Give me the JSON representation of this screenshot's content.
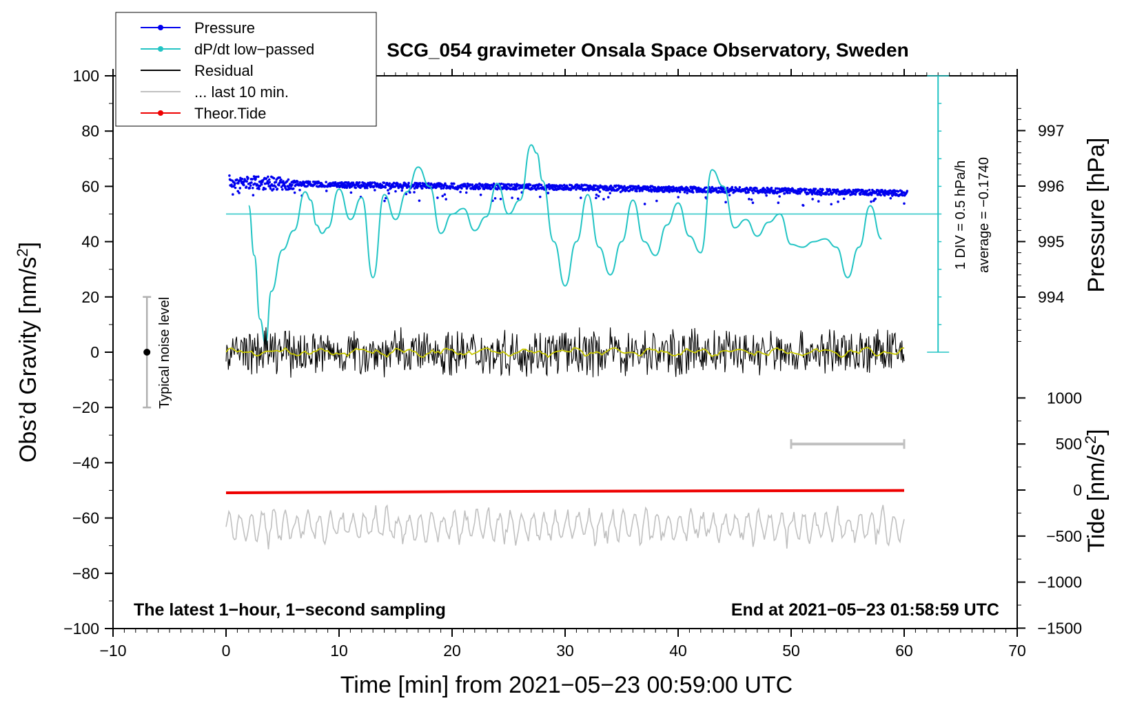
{
  "chart_data": {
    "type": "line",
    "title": "SCG_054 gravimeter Onsala Space Observatory, Sweden",
    "xlabel": "Time [min] from 2021−05−23 00:59:00 UTC",
    "ylabel_left": "Obs’d Gravity [nm/s",
    "ylabel_left_sup": "2",
    "ylabel_left_close": "]",
    "ylabel_right_pressure": "Pressure [hPa]",
    "ylabel_right_tide": "Tide [nm/s",
    "ylabel_right_tide_sup": "2",
    "ylabel_right_tide_close": "]",
    "xlim": [
      -10,
      70
    ],
    "ylim": [
      -100,
      100
    ],
    "x_ticks": [
      "−10",
      "0",
      "10",
      "20",
      "30",
      "40",
      "50",
      "60",
      "70"
    ],
    "y_ticks": [
      "100",
      "80",
      "60",
      "40",
      "20",
      "0",
      "−20",
      "−40",
      "−60",
      "−80",
      "−100"
    ],
    "pressure_ticks": [
      "997",
      "996",
      "995",
      "994"
    ],
    "pressure_tick_values": [
      997,
      996,
      995,
      994
    ],
    "tide_ticks": [
      "1000",
      "500",
      "0",
      "−500",
      "−1000",
      "−1500"
    ],
    "tide_tick_values": [
      1000,
      500,
      0,
      -500,
      -1000,
      -1500
    ],
    "legend": [
      {
        "label": "Pressure",
        "color": "#0000ee",
        "marker": true
      },
      {
        "label": "dP/dt low−passed",
        "color": "#22c4c4",
        "marker": true
      },
      {
        "label": "Residual",
        "color": "#000000",
        "marker": false
      },
      {
        "label": "... last 10 min.",
        "color": "#c0c0c0",
        "marker": false
      },
      {
        "label": "Theor.Tide",
        "color": "#ee0000",
        "marker": true
      }
    ],
    "annotations": {
      "bottom_left": "The latest 1−hour, 1−second sampling",
      "bottom_right": "End at 2021−05−23 01:58:59 UTC",
      "noise": "Typical noise level",
      "dpdt_scale": "1 DIV = 0.5 hPa/h",
      "dpdt_average": "average = −0.1740"
    },
    "noise_bar": {
      "x": -7,
      "center": 0,
      "half_range": 20
    },
    "pressure_series": {
      "x": [
        0,
        5,
        10,
        15,
        20,
        25,
        30,
        35,
        40,
        45,
        50,
        55,
        60
      ],
      "values": [
        996.07,
        996.05,
        996.02,
        996.01,
        996.0,
        995.99,
        995.98,
        995.96,
        995.94,
        995.93,
        995.91,
        995.89,
        995.87
      ]
    },
    "dpdt_series": {
      "reference_level": 50,
      "x": [
        2,
        2.5,
        3,
        3.5,
        4,
        5,
        6,
        7,
        7.5,
        8,
        8.5,
        9,
        10,
        11,
        12,
        13,
        14,
        15,
        16,
        17,
        18,
        19,
        20,
        21,
        22,
        23,
        24,
        25,
        26,
        27,
        27.5,
        28,
        29,
        30,
        31,
        32,
        33,
        34,
        35,
        36,
        37,
        38,
        39,
        40,
        41,
        42,
        43,
        44,
        45,
        46,
        47,
        48,
        49,
        50,
        51,
        52,
        53,
        54,
        55,
        56,
        57,
        58
      ],
      "values": [
        53,
        35,
        12,
        3,
        22,
        37,
        44,
        58,
        55,
        46,
        43,
        45,
        59,
        48,
        56,
        27,
        57,
        48,
        58,
        67,
        60,
        43,
        50,
        52,
        44,
        49,
        61,
        50,
        55,
        75,
        72,
        62,
        40,
        24,
        40,
        57,
        38,
        28,
        40,
        55,
        40,
        35,
        46,
        54,
        42,
        36,
        66,
        60,
        45,
        48,
        42,
        47,
        50,
        39,
        38,
        40,
        41,
        38,
        27,
        38,
        53,
        41
      ]
    },
    "residual_series": {
      "x_start": 0,
      "x_end": 60,
      "amplitude_nm_s2": 8
    },
    "last10_series": {
      "x_start": 0,
      "x_end": 60,
      "offset": -63,
      "amplitude_nm_s2": 7
    },
    "tide_series": {
      "x": [
        0,
        20,
        40,
        60
      ],
      "values": [
        -30,
        -18,
        -10,
        -5
      ]
    },
    "last10_marker": {
      "x_start": 50,
      "x_end": 60,
      "tide_level": 500
    },
    "dpdt_scale_bar": {
      "x": 63,
      "top": 100,
      "bottom": 0,
      "divisions": 10
    }
  }
}
